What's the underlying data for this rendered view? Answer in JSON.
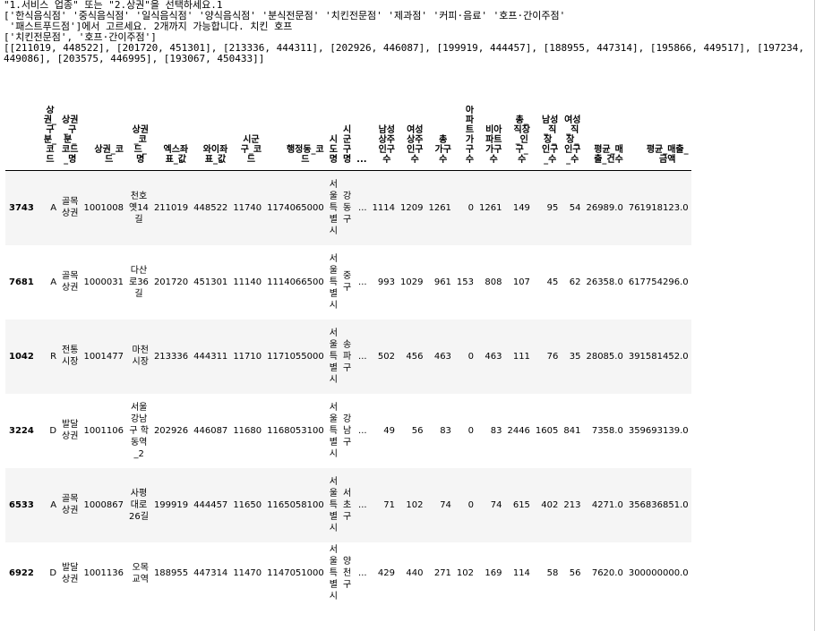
{
  "output_lines": [
    "\"1.서비스 업종\" 또는 \"2.상권\"을 선택하세요.1",
    "['한식음식점' '중식음식점' '일식음식점' '양식음식점' '분식전문점' '치킨전문점' '제과점' '커피·음료' '호프·간이주점'",
    " '패스트푸드점']에서 고르세요. 2개까지 가능합니다. 치킨 호프",
    "['치킨전문점', '호프·간이주점']",
    "[[211019, 448522], [201720, 451301], [213336, 444311], [202926, 446087], [199919, 444457], [188955, 447314], [195866, 449517], [197234, 449086], [203575, 446995], [193067, 450433]]"
  ],
  "table": {
    "columns": [
      "상권_구분_코드",
      "상권_구분_코드_명",
      "상권_코드",
      "상권_코드_명",
      "엑스좌표_값",
      "와이좌표_값",
      "시군구_코드",
      "행정동_코드",
      "시도명",
      "시군구명",
      "...",
      "남성상주인구수",
      "여성상주인구수",
      "총가구수",
      "아파트가구수",
      "비아파트가구수",
      "총_직장_인구_수",
      "남성_직장_인구_수",
      "여성_직장_인구_수",
      "평균_매출_건수",
      "평균_매출_금액"
    ],
    "column_labels": [
      "상\n권_\n구\n분_\n코\n드",
      "상권\n_구\n분_\n코드\n_명",
      "상권_코\n드",
      "상권\n_코\n드_\n명",
      "엑스좌\n표_값",
      "와이좌\n표_값",
      "시군\n구_코\n드",
      "행정동_코\n드",
      "시\n도\n명",
      "시\n군\n구\n명",
      "...",
      "남성\n상주\n인구\n수",
      "여성\n상주\n인구\n수",
      "총\n가구\n수",
      "아\n파\n트\n가\n구\n수",
      "비아\n파트\n가구\n수",
      "총_\n직장\n_인\n구_\n수",
      "남성\n_직\n장_\n인구\n_수",
      "여성\n_직\n장_\n인구\n_수",
      "평균_매\n출_건수",
      "평균_매출_\n금액"
    ],
    "rows": [
      {
        "index": "3743",
        "cells": [
          "A",
          "골목\n상권",
          "1001008",
          "천호\n옛14\n길",
          "211019",
          "448522",
          "11740",
          "1174065000",
          "서\n울\n특\n별\n시",
          "강\n동\n구",
          "...",
          "1114",
          "1209",
          "1261",
          "0",
          "1261",
          "149",
          "95",
          "54",
          "26989.0",
          "761918123.0"
        ]
      },
      {
        "index": "7681",
        "cells": [
          "A",
          "골목\n상권",
          "1000031",
          "다산\n로36\n길",
          "201720",
          "451301",
          "11140",
          "1114066500",
          "서\n울\n특\n별\n시",
          "중\n구",
          "...",
          "993",
          "1029",
          "961",
          "153",
          "808",
          "107",
          "45",
          "62",
          "26358.0",
          "617754296.0"
        ]
      },
      {
        "index": "1042",
        "cells": [
          "R",
          "전통\n시장",
          "1001477",
          "마천\n시장",
          "213336",
          "444311",
          "11710",
          "1171055000",
          "서\n울\n특\n별\n시",
          "송\n파\n구",
          "...",
          "502",
          "456",
          "463",
          "0",
          "463",
          "111",
          "76",
          "35",
          "28085.0",
          "391581452.0"
        ]
      },
      {
        "index": "3224",
        "cells": [
          "D",
          "발달\n상권",
          "1001106",
          "서울\n강남\n구 학\n동역\n_2",
          "202926",
          "446087",
          "11680",
          "1168053100",
          "서\n울\n특\n별\n시",
          "강\n남\n구",
          "...",
          "49",
          "56",
          "83",
          "0",
          "83",
          "2446",
          "1605",
          "841",
          "7358.0",
          "359693139.0"
        ]
      },
      {
        "index": "6533",
        "cells": [
          "A",
          "골목\n상권",
          "1000867",
          "사평\n대로\n26길",
          "199919",
          "444457",
          "11650",
          "1165058100",
          "서\n울\n특\n별\n시",
          "서\n초\n구",
          "...",
          "71",
          "102",
          "74",
          "0",
          "74",
          "615",
          "402",
          "213",
          "4271.0",
          "356836851.0"
        ]
      },
      {
        "index": "6922",
        "cells": [
          "D",
          "발달\n상권",
          "1001136",
          "오목\n교역",
          "188955",
          "447314",
          "11470",
          "1147051000",
          "서\n울\n특\n별\n시",
          "양\n천\n구",
          "...",
          "429",
          "440",
          "271",
          "102",
          "169",
          "114",
          "58",
          "56",
          "7620.0",
          "300000000.0"
        ]
      }
    ]
  }
}
